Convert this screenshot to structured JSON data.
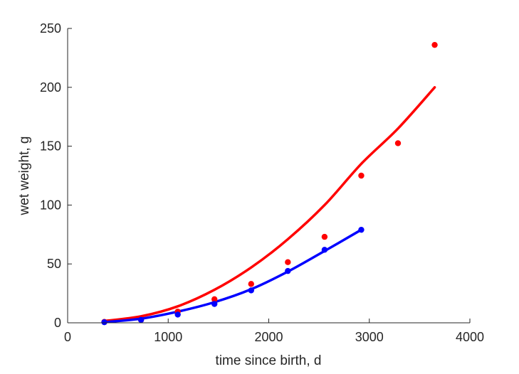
{
  "chart_data": {
    "type": "scatter",
    "title": "",
    "xlabel": "time since birth, d",
    "ylabel": "wet weight, g",
    "xlim": [
      0,
      4000
    ],
    "ylim": [
      0,
      250
    ],
    "xticks": [
      0,
      1000,
      2000,
      3000,
      4000
    ],
    "yticks": [
      0,
      50,
      100,
      150,
      200,
      250
    ],
    "grid": false,
    "legend": "none",
    "series": [
      {
        "color": "#ff0000",
        "points": {
          "x": [
            365,
            730,
            1095,
            1460,
            1825,
            2190,
            2555,
            2920,
            3285,
            3650
          ],
          "y": [
            0.8,
            2.5,
            9.5,
            20,
            33,
            51.5,
            73,
            125,
            152.5,
            236
          ]
        },
        "fit": {
          "x": [
            365,
            730,
            1095,
            1460,
            1825,
            2190,
            2555,
            2920,
            3285,
            3650
          ],
          "y": [
            1.5,
            5.5,
            14,
            28,
            47,
            71,
            100,
            135,
            165,
            200
          ]
        }
      },
      {
        "color": "#0000ff",
        "points": {
          "x": [
            365,
            730,
            1095,
            1460,
            1825,
            2190,
            2555,
            2920
          ],
          "y": [
            0.5,
            2.5,
            7,
            16,
            27.5,
            44,
            62,
            79
          ]
        },
        "fit": {
          "x": [
            365,
            730,
            1095,
            1460,
            1825,
            2190,
            2555,
            2920
          ],
          "y": [
            0.5,
            3.5,
            9.5,
            17.5,
            28.5,
            43.5,
            61,
            79
          ]
        }
      }
    ]
  }
}
